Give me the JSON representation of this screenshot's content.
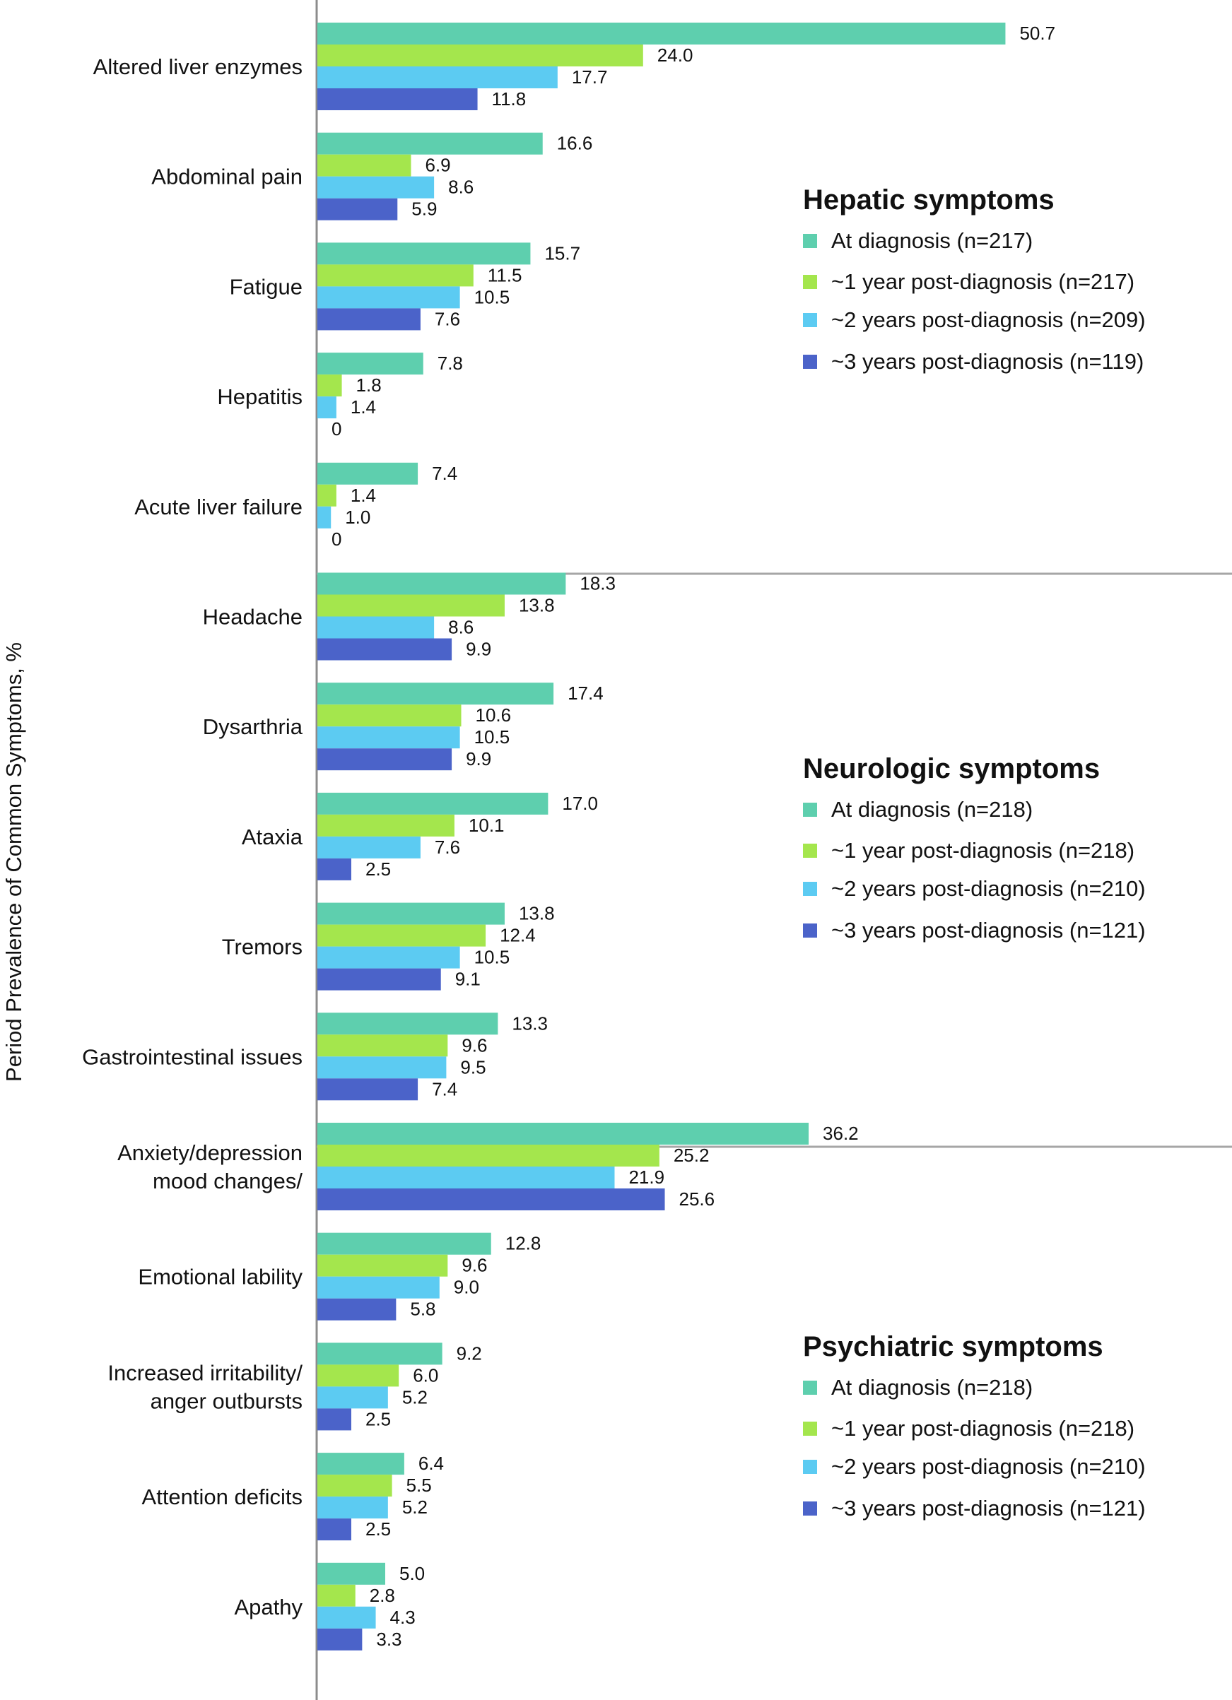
{
  "chart_data": {
    "type": "bar",
    "orientation": "horizontal",
    "ylabel": "Period Prevalence of Common Symptoms, %",
    "xlim": [
      0,
      100
    ],
    "colors": [
      "#5ecfae",
      "#a4e64d",
      "#5ccbf2",
      "#4b63c9"
    ],
    "groups": [
      {
        "title": "Hepatic symptoms",
        "series_names": [
          "At diagnosis (n=217)",
          "~1 year post-diagnosis (n=217)",
          "~2 years post-diagnosis (n=209)",
          "~3 years post-diagnosis (n=119)"
        ],
        "categories": [
          {
            "label": [
              "Altered liver enzymes"
            ],
            "values": [
              50.7,
              24.0,
              17.7,
              11.8
            ],
            "value_labels": [
              "50.7",
              "24.0",
              "17.7",
              "11.8"
            ]
          },
          {
            "label": [
              "Abdominal pain"
            ],
            "values": [
              16.6,
              6.9,
              8.6,
              5.9
            ],
            "value_labels": [
              "16.6",
              "6.9",
              "8.6",
              "5.9"
            ]
          },
          {
            "label": [
              "Fatigue"
            ],
            "values": [
              15.7,
              11.5,
              10.5,
              7.6
            ],
            "value_labels": [
              "15.7",
              "11.5",
              "10.5",
              "7.6"
            ]
          },
          {
            "label": [
              "Hepatitis"
            ],
            "values": [
              7.8,
              1.8,
              1.4,
              0
            ],
            "value_labels": [
              "7.8",
              "1.8",
              "1.4",
              "0"
            ]
          },
          {
            "label": [
              "Acute liver failure"
            ],
            "values": [
              7.4,
              1.4,
              1.0,
              0
            ],
            "value_labels": [
              "7.4",
              "1.4",
              "1.0",
              "0"
            ]
          }
        ]
      },
      {
        "title": "Neurologic symptoms",
        "series_names": [
          "At diagnosis (n=218)",
          "~1 year post-diagnosis (n=218)",
          "~2 years post-diagnosis (n=210)",
          "~3 years post-diagnosis (n=121)"
        ],
        "categories": [
          {
            "label": [
              "Headache"
            ],
            "values": [
              18.3,
              13.8,
              8.6,
              9.9
            ],
            "value_labels": [
              "18.3",
              "13.8",
              "8.6",
              "9.9"
            ]
          },
          {
            "label": [
              "Dysarthria"
            ],
            "values": [
              17.4,
              10.6,
              10.5,
              9.9
            ],
            "value_labels": [
              "17.4",
              "10.6",
              "10.5",
              "9.9"
            ]
          },
          {
            "label": [
              "Ataxia"
            ],
            "values": [
              17.0,
              10.1,
              7.6,
              2.5
            ],
            "value_labels": [
              "17.0",
              "10.1",
              "7.6",
              "2.5"
            ]
          },
          {
            "label": [
              "Tremors"
            ],
            "values": [
              13.8,
              12.4,
              10.5,
              9.1
            ],
            "value_labels": [
              "13.8",
              "12.4",
              "10.5",
              "9.1"
            ]
          },
          {
            "label": [
              "Gastrointestinal issues"
            ],
            "values": [
              13.3,
              9.6,
              9.5,
              7.4
            ],
            "value_labels": [
              "13.3",
              "9.6",
              "9.5",
              "7.4"
            ]
          }
        ]
      },
      {
        "title": "Psychiatric symptoms",
        "series_names": [
          "At diagnosis (n=218)",
          "~1 year post-diagnosis (n=218)",
          "~2 years post-diagnosis (n=210)",
          "~3 years post-diagnosis (n=121)"
        ],
        "categories": [
          {
            "label": [
              "Anxiety/depression",
              "mood changes/"
            ],
            "values": [
              36.2,
              25.2,
              21.9,
              25.6
            ],
            "value_labels": [
              "36.2",
              "25.2",
              "21.9",
              "25.6"
            ]
          },
          {
            "label": [
              "Emotional lability"
            ],
            "values": [
              12.8,
              9.6,
              9.0,
              5.8
            ],
            "value_labels": [
              "12.8",
              "9.6",
              "9.0",
              "5.8"
            ]
          },
          {
            "label": [
              "Increased irritability/",
              "anger outbursts"
            ],
            "values": [
              9.2,
              6.0,
              5.2,
              2.5
            ],
            "value_labels": [
              "9.2",
              "6.0",
              "5.2",
              "2.5"
            ]
          },
          {
            "label": [
              "Attention deficits"
            ],
            "values": [
              6.4,
              5.5,
              5.2,
              2.5
            ],
            "value_labels": [
              "6.4",
              "5.5",
              "5.2",
              "2.5"
            ]
          },
          {
            "label": [
              "Apathy"
            ],
            "values": [
              5.0,
              2.8,
              4.3,
              3.3
            ],
            "value_labels": [
              "5.0",
              "2.8",
              "4.3",
              "3.3"
            ]
          }
        ]
      }
    ]
  }
}
